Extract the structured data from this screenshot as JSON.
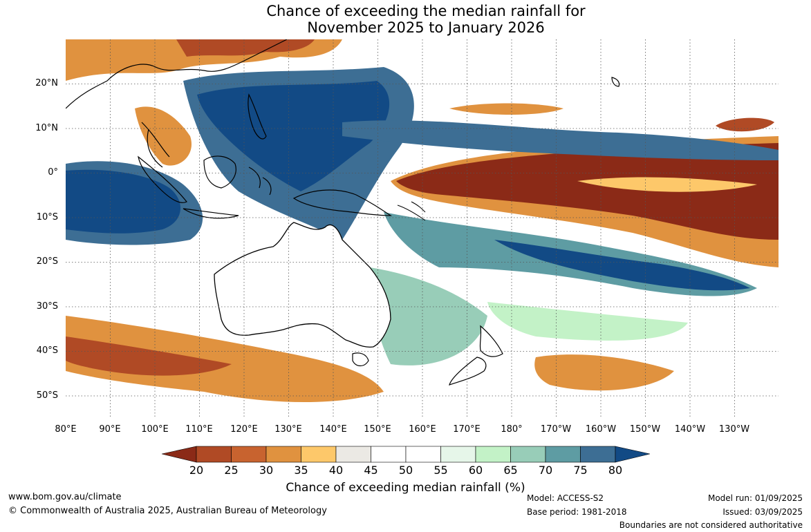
{
  "title": {
    "line1": "Chance of exceeding the median rainfall for",
    "line2": "November 2025 to January 2026"
  },
  "map": {
    "lat_labels": [
      "20°N",
      "10°N",
      "0°",
      "10°S",
      "20°S",
      "30°S",
      "40°S",
      "50°S"
    ],
    "lon_labels": [
      "80°E",
      "90°E",
      "100°E",
      "110°E",
      "120°E",
      "130°E",
      "140°E",
      "150°E",
      "160°E",
      "170°E",
      "180°",
      "170°W",
      "160°W",
      "150°W",
      "140°W",
      "130°W"
    ],
    "colors": {
      "20": "#8b2a17",
      "25": "#b04a25",
      "30": "#c8632f",
      "35": "#e0923f",
      "40": "#fdc86a",
      "45": "#ebe9e4",
      "55": "#ffffff",
      "60": "#e6f6e9",
      "65": "#c3f2c7",
      "70": "#98cdb8",
      "75": "#5e9ca3",
      "80": "#3d6e94",
      "85": "#124a85"
    }
  },
  "colorbar": {
    "ticks": [
      "20",
      "25",
      "30",
      "35",
      "40",
      "45",
      "50",
      "55",
      "60",
      "65",
      "70",
      "75",
      "80"
    ],
    "title": "Chance of exceeding median rainfall (%)"
  },
  "footer": {
    "website": "www.bom.gov.au/climate",
    "copyright": "© Commonwealth of Australia 2025, Australian Bureau of Meteorology",
    "model": "Model: ACCESS-S2",
    "base_period": "Base period: 1981-2018",
    "model_run": "Model run: 01/09/2025",
    "issued": "Issued: 03/09/2025",
    "disclaimer": "Boundaries are not considered authoritative"
  }
}
